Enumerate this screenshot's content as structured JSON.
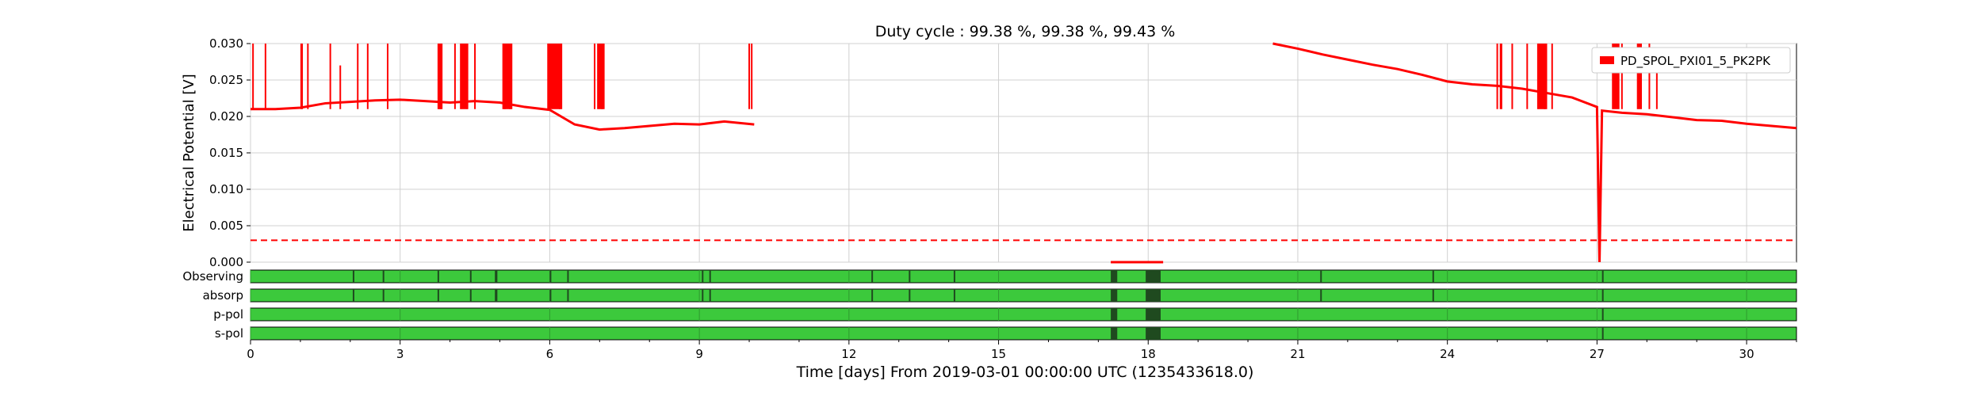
{
  "chart_data": {
    "type": "line",
    "title": "Duty cycle : 99.38 %, 99.38 %, 99.43 %",
    "xlabel": "Time [days] From 2019-03-01 00:00:00 UTC (1235433618.0)",
    "ylabel": "Electrical Potential [V]",
    "xlim": [
      0,
      31
    ],
    "ylim": [
      0,
      0.03
    ],
    "x_ticks": [
      0,
      3,
      6,
      9,
      12,
      15,
      18,
      21,
      24,
      27,
      30
    ],
    "y_ticks": [
      "0.000",
      "0.005",
      "0.010",
      "0.015",
      "0.020",
      "0.025",
      "0.030"
    ],
    "grid": true,
    "legend_position": "top-right",
    "colors": {
      "series": "#ff0000",
      "state_on": "#3cc93c",
      "state_off": "#1f4a1f"
    },
    "series": [
      {
        "name": "PD_SPOL_PXI01_5_PK2PK",
        "style": "solid",
        "x": [
          0,
          0.5,
          1,
          1.5,
          2,
          2.5,
          3,
          3.5,
          4,
          4.5,
          5,
          5.5,
          6,
          6.5,
          7,
          7.5,
          8,
          8.5,
          9,
          9.5,
          10.1,
          17.25,
          17.3,
          17.35,
          18.0,
          18.05,
          18.3,
          20.5,
          21,
          21.5,
          22,
          22.5,
          23,
          23.5,
          24,
          24.5,
          25,
          25.5,
          26,
          26.5,
          27,
          27.05,
          27.1,
          27.5,
          28,
          28.5,
          29,
          29.5,
          30,
          30.5,
          31
        ],
        "y": [
          0.021,
          0.021,
          0.0212,
          0.0218,
          0.022,
          0.0222,
          0.0223,
          0.0221,
          0.0219,
          0.0221,
          0.0219,
          0.0213,
          0.0209,
          0.0189,
          0.0182,
          0.0184,
          0.0187,
          0.019,
          0.0189,
          0.0193,
          0.0189,
          0.0,
          0.0,
          0.0,
          0.0,
          0.0,
          0.0,
          0.03,
          0.0293,
          0.0285,
          0.0278,
          0.0271,
          0.0265,
          0.0257,
          0.0248,
          0.0244,
          0.0242,
          0.0238,
          0.0232,
          0.0226,
          0.0213,
          0.0,
          0.0208,
          0.0205,
          0.0203,
          0.0199,
          0.0195,
          0.0194,
          0.019,
          0.0187,
          0.0184
        ]
      },
      {
        "name": "",
        "style": "dashed",
        "x": [
          0,
          31
        ],
        "y": [
          0.003,
          0.003
        ]
      }
    ],
    "spikes": [
      {
        "x": 0.05,
        "y": 0.03
      },
      {
        "x": 0.3,
        "y": 0.03
      },
      {
        "x": 1.15,
        "y": 0.03
      },
      {
        "x": 1.6,
        "y": 0.03
      },
      {
        "x": 1.8,
        "y": 0.027
      },
      {
        "x": 2.15,
        "y": 0.03
      },
      {
        "x": 2.35,
        "y": 0.03
      },
      {
        "x": 2.75,
        "y": 0.03
      },
      {
        "x": 3.8,
        "y": 0.03
      },
      {
        "x": 4.1,
        "y": 0.03
      },
      {
        "x": 4.35,
        "y": 0.03
      },
      {
        "x": 4.5,
        "y": 0.03
      },
      {
        "x": 5.1,
        "y": 0.03
      },
      {
        "x": 5.2,
        "y": 0.03
      },
      {
        "x": 6.0,
        "y": 0.03
      },
      {
        "x": 6.2,
        "y": 0.03
      },
      {
        "x": 6.9,
        "y": 0.03
      },
      {
        "x": 7.05,
        "y": 0.03
      },
      {
        "x": 10.0,
        "y": 0.03
      },
      {
        "x": 10.05,
        "y": 0.03
      },
      {
        "x": 25.0,
        "y": 0.03
      },
      {
        "x": 25.3,
        "y": 0.03
      },
      {
        "x": 25.6,
        "y": 0.03
      },
      {
        "x": 25.95,
        "y": 0.03
      },
      {
        "x": 26.1,
        "y": 0.03
      },
      {
        "x": 27.5,
        "y": 0.03
      },
      {
        "x": 28.05,
        "y": 0.03
      },
      {
        "x": 28.2,
        "y": 0.028
      }
    ],
    "spike_bands": [
      {
        "x0": 1.0,
        "x1": 1.05
      },
      {
        "x0": 3.75,
        "x1": 3.85
      },
      {
        "x0": 4.2,
        "x1": 4.35
      },
      {
        "x0": 5.05,
        "x1": 5.25
      },
      {
        "x0": 5.95,
        "x1": 6.25
      },
      {
        "x0": 6.95,
        "x1": 7.1
      },
      {
        "x0": 25.05,
        "x1": 25.1
      },
      {
        "x0": 25.8,
        "x1": 26.0
      },
      {
        "x0": 27.3,
        "x1": 27.45
      },
      {
        "x0": 27.8,
        "x1": 27.9
      }
    ],
    "states": {
      "labels": [
        "Observing",
        "absorp",
        "p-pol",
        "s-pol"
      ],
      "off_segments": [
        [
          {
            "x0": 2.05,
            "x1": 2.08
          },
          {
            "x0": 2.65,
            "x1": 2.68
          },
          {
            "x0": 3.75,
            "x1": 3.77
          },
          {
            "x0": 4.4,
            "x1": 4.43
          },
          {
            "x0": 4.9,
            "x1": 4.95
          },
          {
            "x0": 6.0,
            "x1": 6.03
          },
          {
            "x0": 6.35,
            "x1": 6.38
          },
          {
            "x0": 9.05,
            "x1": 9.08
          },
          {
            "x0": 9.2,
            "x1": 9.23
          },
          {
            "x0": 12.45,
            "x1": 12.48
          },
          {
            "x0": 13.2,
            "x1": 13.23
          },
          {
            "x0": 14.1,
            "x1": 14.13
          },
          {
            "x0": 17.25,
            "x1": 17.38
          },
          {
            "x0": 17.95,
            "x1": 18.25
          },
          {
            "x0": 21.45,
            "x1": 21.48
          },
          {
            "x0": 23.7,
            "x1": 23.73
          },
          {
            "x0": 27.1,
            "x1": 27.13
          }
        ],
        [
          {
            "x0": 2.05,
            "x1": 2.08
          },
          {
            "x0": 2.65,
            "x1": 2.68
          },
          {
            "x0": 3.75,
            "x1": 3.77
          },
          {
            "x0": 4.4,
            "x1": 4.43
          },
          {
            "x0": 4.9,
            "x1": 4.95
          },
          {
            "x0": 6.0,
            "x1": 6.03
          },
          {
            "x0": 6.35,
            "x1": 6.38
          },
          {
            "x0": 9.05,
            "x1": 9.08
          },
          {
            "x0": 9.2,
            "x1": 9.23
          },
          {
            "x0": 12.45,
            "x1": 12.48
          },
          {
            "x0": 13.2,
            "x1": 13.23
          },
          {
            "x0": 14.1,
            "x1": 14.13
          },
          {
            "x0": 17.25,
            "x1": 17.38
          },
          {
            "x0": 17.95,
            "x1": 18.25
          },
          {
            "x0": 21.45,
            "x1": 21.48
          },
          {
            "x0": 23.7,
            "x1": 23.73
          },
          {
            "x0": 27.1,
            "x1": 27.13
          }
        ],
        [
          {
            "x0": 17.25,
            "x1": 17.38
          },
          {
            "x0": 17.95,
            "x1": 18.25
          },
          {
            "x0": 27.1,
            "x1": 27.13
          }
        ],
        [
          {
            "x0": 17.25,
            "x1": 17.38
          },
          {
            "x0": 17.95,
            "x1": 18.25
          },
          {
            "x0": 27.1,
            "x1": 27.13
          }
        ]
      ]
    }
  }
}
